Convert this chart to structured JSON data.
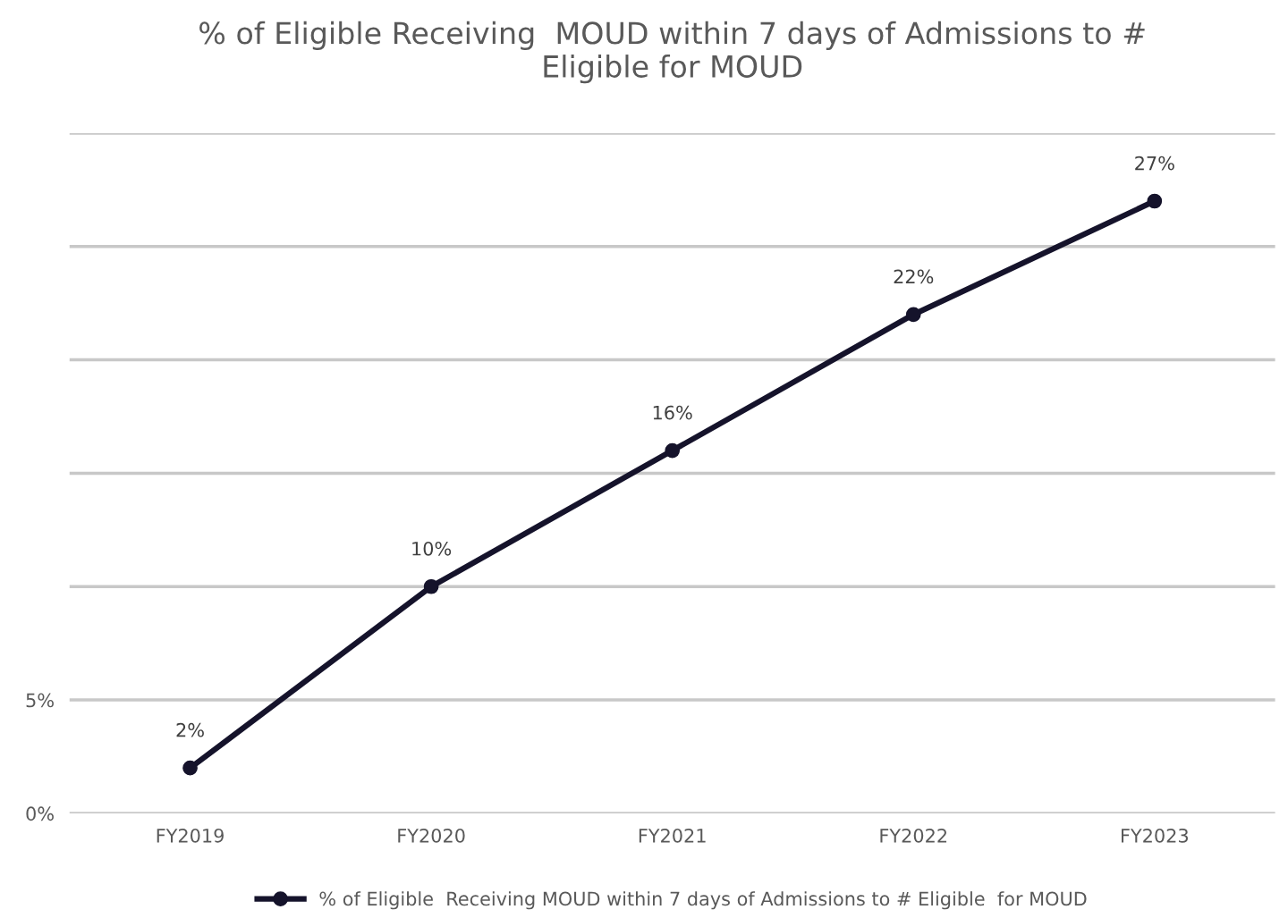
{
  "chart_data": {
    "type": "line",
    "title": "% of Eligible Receiving  MOUD within 7 days of Admissions to #\nEligible for MOUD",
    "categories": [
      "FY2019",
      "FY2020",
      "FY2021",
      "FY2022",
      "FY2023"
    ],
    "series": [
      {
        "name": "% of Eligible  Receiving MOUD within 7 days of Admissions to # Eligible  for MOUD",
        "color": "#15132b",
        "values": [
          2,
          10,
          16,
          22,
          27
        ],
        "value_labels": [
          "2%",
          "10%",
          "16%",
          "22%",
          "27%"
        ]
      }
    ],
    "ylim": [
      0,
      30
    ],
    "yticks": [
      {
        "value": 0,
        "label": "0%"
      },
      {
        "value": 5,
        "label": "5%"
      },
      {
        "value": 10,
        "label": null
      },
      {
        "value": 15,
        "label": null
      },
      {
        "value": 20,
        "label": null
      },
      {
        "value": 25,
        "label": null
      },
      {
        "value": 30,
        "label": null
      }
    ],
    "grid": "y",
    "legend": "bottom",
    "marker": "circle",
    "line_style": "solid"
  }
}
